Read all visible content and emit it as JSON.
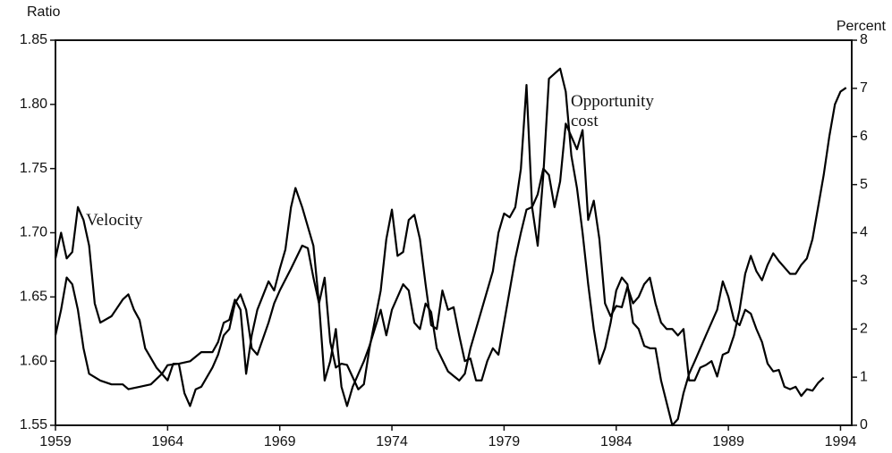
{
  "chart_data": {
    "type": "line",
    "y_label": "Ratio",
    "y2_label": "Percent",
    "xlim": [
      1959,
      1994.5
    ],
    "xticks": [
      1959,
      1964,
      1969,
      1974,
      1979,
      1984,
      1989,
      1994
    ],
    "ylim": [
      1.55,
      1.85
    ],
    "yticks": [
      1.55,
      {
        "value": 1.6,
        "label": "1.60"
      },
      1.65,
      {
        "value": 1.7,
        "label": "1.70"
      },
      1.75,
      {
        "value": 1.8,
        "label": "1.80"
      },
      1.85
    ],
    "y2lim": [
      0,
      8
    ],
    "y2ticks": [
      0,
      1,
      2,
      3,
      4,
      5,
      6,
      7,
      8
    ],
    "series": [
      {
        "name": "Velocity",
        "color": "#000000",
        "x": [
          1959.0,
          1959.25,
          1959.5,
          1959.75,
          1960.0,
          1960.25,
          1960.5,
          1960.75,
          1961.0,
          1961.5,
          1962.0,
          1962.25,
          1962.5,
          1962.75,
          1963.0,
          1963.5,
          1963.75,
          1964.0,
          1964.25,
          1964.5,
          1964.75,
          1965.0,
          1965.25,
          1965.5,
          1966.0,
          1966.25,
          1966.5,
          1966.75,
          1967.0,
          1967.25,
          1967.5,
          1967.75,
          1968.0,
          1968.5,
          1968.75,
          1969.0,
          1969.5,
          1970.0,
          1970.25,
          1970.5,
          1970.75,
          1971.0,
          1971.25,
          1971.5,
          1971.75,
          1972.0,
          1972.5,
          1972.75,
          1973.0,
          1973.5,
          1973.75,
          1974.0,
          1974.25,
          1974.5,
          1974.75,
          1975.0,
          1975.25,
          1975.5,
          1975.75,
          1976.0,
          1976.25,
          1976.5,
          1976.75,
          1977.0,
          1977.25,
          1977.5,
          1977.75,
          1978.0,
          1978.25,
          1978.5,
          1978.75,
          1979.0,
          1979.25,
          1979.5,
          1979.75,
          1980.0,
          1980.25,
          1980.5,
          1980.75,
          1981.0,
          1981.25,
          1981.5,
          1981.75,
          1982.0,
          1982.25,
          1982.5,
          1982.75,
          1983.0,
          1983.25,
          1983.5,
          1983.75,
          1984.0,
          1984.25,
          1984.5,
          1984.75,
          1985.0,
          1985.25,
          1985.5,
          1985.75,
          1986.0,
          1986.25,
          1986.5,
          1986.75,
          1987.0,
          1987.25,
          1987.5,
          1987.75,
          1988.0,
          1988.25,
          1988.5,
          1988.75,
          1989.0,
          1989.25,
          1989.5,
          1989.75,
          1990.0,
          1990.25,
          1990.5,
          1990.75,
          1991.0,
          1991.25,
          1991.5,
          1991.75,
          1992.0,
          1992.25,
          1992.5,
          1992.75,
          1993.0,
          1993.25,
          1993.5,
          1993.75,
          1994.0,
          1994.25
        ],
        "values": [
          1.68,
          1.7,
          1.68,
          1.685,
          1.72,
          1.71,
          1.69,
          1.645,
          1.63,
          1.635,
          1.648,
          1.652,
          1.64,
          1.632,
          1.61,
          1.595,
          1.59,
          1.585,
          1.598,
          1.598,
          1.575,
          1.565,
          1.578,
          1.58,
          1.595,
          1.605,
          1.62,
          1.625,
          1.645,
          1.652,
          1.64,
          1.61,
          1.605,
          1.63,
          1.645,
          1.655,
          1.672,
          1.69,
          1.688,
          1.665,
          1.645,
          1.665,
          1.615,
          1.595,
          1.598,
          1.597,
          1.578,
          1.582,
          1.61,
          1.655,
          1.695,
          1.718,
          1.682,
          1.685,
          1.71,
          1.714,
          1.695,
          1.66,
          1.628,
          1.625,
          1.655,
          1.64,
          1.642,
          1.62,
          1.6,
          1.602,
          1.585,
          1.585,
          1.6,
          1.61,
          1.605,
          1.63,
          1.655,
          1.68,
          1.7,
          1.718,
          1.72,
          1.73,
          1.75,
          1.745,
          1.72,
          1.74,
          1.785,
          1.775,
          1.765,
          1.78,
          1.71,
          1.725,
          1.695,
          1.645,
          1.635,
          1.643,
          1.642,
          1.658,
          1.645,
          1.65,
          1.66,
          1.665,
          1.645,
          1.63,
          1.625,
          1.625,
          1.62,
          1.625,
          1.585,
          1.585,
          1.595,
          1.597,
          1.6,
          1.588,
          1.605,
          1.607,
          1.62,
          1.64,
          1.668,
          1.682,
          1.67,
          1.663,
          1.675,
          1.684,
          1.678,
          1.673,
          1.668,
          1.668,
          1.675,
          1.68,
          1.695,
          1.72,
          1.745,
          1.775,
          1.8,
          1.81,
          1.813
        ]
      },
      {
        "name": "Opportunity cost",
        "color": "#000000",
        "axis": "y2",
        "x": [
          1959.0,
          1959.25,
          1959.5,
          1959.75,
          1960.0,
          1960.25,
          1960.5,
          1961.0,
          1961.5,
          1962.0,
          1962.25,
          1962.75,
          1963.25,
          1963.75,
          1964.0,
          1964.5,
          1965.0,
          1965.5,
          1966.0,
          1966.25,
          1966.5,
          1966.75,
          1967.0,
          1967.25,
          1967.5,
          1967.75,
          1968.0,
          1968.5,
          1968.75,
          1969.0,
          1969.25,
          1969.5,
          1969.7,
          1970.0,
          1970.5,
          1970.75,
          1971.0,
          1971.25,
          1971.5,
          1971.75,
          1972.0,
          1972.25,
          1972.75,
          1973.0,
          1973.5,
          1973.75,
          1974.0,
          1974.5,
          1974.75,
          1975.0,
          1975.25,
          1975.5,
          1975.75,
          1976.0,
          1976.5,
          1977.0,
          1977.25,
          1977.5,
          1977.75,
          1978.0,
          1978.5,
          1978.75,
          1979.0,
          1979.25,
          1979.5,
          1979.75,
          1980.0,
          1980.25,
          1980.5,
          1980.75,
          1981.0,
          1981.5,
          1981.75,
          1982.0,
          1982.25,
          1982.5,
          1982.75,
          1983.0,
          1983.25,
          1983.5,
          1983.75,
          1984.0,
          1984.25,
          1984.5,
          1984.75,
          1985.0,
          1985.25,
          1985.5,
          1985.75,
          1986.0,
          1986.5,
          1986.75,
          1987.0,
          1987.25,
          1987.5,
          1987.75,
          1988.0,
          1988.5,
          1988.75,
          1989.0,
          1989.25,
          1989.5,
          1989.75,
          1990.0,
          1990.25,
          1990.5,
          1990.75,
          1991.0,
          1991.25,
          1991.5,
          1991.75,
          1992.0,
          1992.25,
          1992.5,
          1992.75,
          1993.0,
          1993.25
        ],
        "values": [
          1.87,
          2.4,
          3.07,
          2.93,
          2.4,
          1.6,
          1.07,
          0.93,
          0.85,
          0.85,
          0.75,
          0.8,
          0.85,
          1.07,
          1.25,
          1.28,
          1.33,
          1.52,
          1.52,
          1.73,
          2.13,
          2.19,
          2.61,
          2.4,
          1.07,
          1.87,
          2.4,
          2.99,
          2.8,
          3.25,
          3.65,
          4.53,
          4.93,
          4.53,
          3.73,
          2.53,
          0.93,
          1.33,
          2.0,
          0.8,
          0.4,
          0.8,
          1.33,
          1.65,
          2.4,
          1.87,
          2.4,
          2.93,
          2.8,
          2.13,
          2.0,
          2.53,
          2.35,
          1.6,
          1.12,
          0.93,
          1.07,
          1.6,
          2.0,
          2.4,
          3.2,
          4.0,
          4.4,
          4.32,
          4.53,
          5.33,
          7.07,
          4.53,
          3.73,
          5.2,
          7.2,
          7.41,
          6.93,
          5.6,
          4.93,
          4.0,
          2.93,
          2.0,
          1.28,
          1.6,
          2.13,
          2.8,
          3.07,
          2.93,
          2.13,
          2.0,
          1.65,
          1.6,
          1.6,
          0.93,
          0.0,
          0.13,
          0.67,
          1.07,
          1.33,
          1.6,
          1.87,
          2.4,
          2.99,
          2.67,
          2.19,
          2.08,
          2.4,
          2.32,
          2.0,
          1.73,
          1.28,
          1.12,
          1.15,
          0.8,
          0.75,
          0.8,
          0.61,
          0.75,
          0.72,
          0.88,
          0.99
        ]
      }
    ]
  }
}
